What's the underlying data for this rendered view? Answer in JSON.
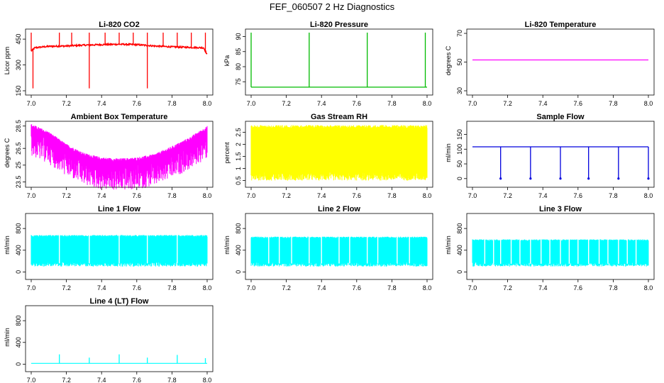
{
  "page": {
    "title": "FEF_060507  2 Hz Diagnostics"
  },
  "chart_data": [
    {
      "type": "line",
      "title": "Li-820 CO2",
      "ylabel": "Licor ppm",
      "xlim": [
        7.0,
        8.0
      ],
      "ylim": [
        150,
        500
      ],
      "xticks": [
        7.0,
        7.2,
        7.4,
        7.6,
        7.8,
        8.0
      ],
      "xtick_labels": [
        "7.0",
        "7.2",
        "7.4",
        "7.6",
        "7.8",
        "8.0"
      ],
      "yticks": [
        150,
        300,
        450
      ],
      "ytick_labels": [
        "150",
        "300",
        "450"
      ],
      "color": "#ff0000",
      "series": [
        {
          "x": [
            7.0,
            7.02,
            7.1,
            7.2,
            7.3,
            7.4,
            7.5,
            7.6,
            7.7,
            7.8,
            7.9,
            7.98,
            8.0
          ],
          "y": [
            380,
            400,
            408,
            410,
            415,
            418,
            420,
            418,
            410,
            405,
            402,
            400,
            360
          ]
        }
      ],
      "spikes_up": [
        7.0,
        7.16,
        7.23,
        7.33,
        7.42,
        7.5,
        7.58,
        7.66,
        7.75,
        7.83,
        7.91,
        7.99
      ],
      "spikes_down": [
        7.01,
        7.33,
        7.66
      ]
    },
    {
      "type": "line",
      "title": "Li-820 Pressure",
      "ylabel": "kPa",
      "xlim": [
        7.0,
        8.0
      ],
      "ylim": [
        72,
        92
      ],
      "xticks": [
        7.0,
        7.2,
        7.4,
        7.6,
        7.8,
        8.0
      ],
      "xtick_labels": [
        "7.0",
        "7.2",
        "7.4",
        "7.6",
        "7.8",
        "8.0"
      ],
      "yticks": [
        75,
        80,
        85,
        90
      ],
      "ytick_labels": [
        "75",
        "80",
        "85",
        "90"
      ],
      "color": "#00bb00",
      "series": [
        {
          "x": [
            7.0,
            7.5,
            8.0
          ],
          "y": [
            73.2,
            73.2,
            73.2
          ]
        }
      ],
      "spikes_up": [
        7.0,
        7.33,
        7.66,
        7.99
      ]
    },
    {
      "type": "line",
      "title": "Li-820 Temperature",
      "ylabel": "degrees C",
      "xlim": [
        7.0,
        8.0
      ],
      "ylim": [
        30,
        72
      ],
      "xticks": [
        7.0,
        7.2,
        7.4,
        7.6,
        7.8,
        8.0
      ],
      "xtick_labels": [
        "7.0",
        "7.2",
        "7.4",
        "7.6",
        "7.8",
        "8.0"
      ],
      "yticks": [
        30,
        50,
        70
      ],
      "ytick_labels": [
        "30",
        "50",
        "70"
      ],
      "color": "#ff00ff",
      "series": [
        {
          "x": [
            7.0,
            8.0
          ],
          "y": [
            51.5,
            51.5
          ]
        }
      ]
    },
    {
      "type": "line",
      "title": "Ambient Box Temperature",
      "ylabel": "degrees C",
      "xlim": [
        7.0,
        8.0
      ],
      "ylim": [
        23.4,
        28.8
      ],
      "xticks": [
        7.0,
        7.2,
        7.4,
        7.6,
        7.8,
        8.0
      ],
      "xtick_labels": [
        "7.0",
        "7.2",
        "7.4",
        "7.6",
        "7.8",
        "8.0"
      ],
      "yticks": [
        23.5,
        25.0,
        26.5,
        28.5
      ],
      "ytick_labels": [
        "23.5",
        "25",
        "26.5",
        "28.5"
      ],
      "color": "#ff00ff",
      "series": [
        {
          "x": [
            7.0,
            7.1,
            7.2,
            7.3,
            7.4,
            7.5,
            7.6,
            7.7,
            7.8,
            7.9,
            8.0
          ],
          "y": [
            28.0,
            27.3,
            26.2,
            25.4,
            25.0,
            24.9,
            25.0,
            25.3,
            26.0,
            26.8,
            27.8
          ]
        }
      ],
      "band_low_offset": 2.2
    },
    {
      "type": "line",
      "title": "Gas Stream RH",
      "ylabel": "percent",
      "xlim": [
        7.0,
        8.0
      ],
      "ylim": [
        0.4,
        2.9
      ],
      "xticks": [
        7.0,
        7.2,
        7.4,
        7.6,
        7.8,
        8.0
      ],
      "xtick_labels": [
        "7.0",
        "7.2",
        "7.4",
        "7.6",
        "7.8",
        "8.0"
      ],
      "yticks": [
        0.5,
        1.0,
        1.5,
        2.0,
        2.5
      ],
      "ytick_labels": [
        "0.5",
        "1",
        "1.5",
        "2",
        "2.5"
      ],
      "color": "#ffff00",
      "band": [
        0.5,
        2.8
      ]
    },
    {
      "type": "line",
      "title": "Sample Flow",
      "ylabel": "ml/min",
      "xlim": [
        7.0,
        8.0
      ],
      "ylim": [
        -15,
        190
      ],
      "xticks": [
        7.0,
        7.2,
        7.4,
        7.6,
        7.8,
        8.0
      ],
      "xtick_labels": [
        "7.0",
        "7.2",
        "7.4",
        "7.6",
        "7.8",
        "8.0"
      ],
      "yticks": [
        0,
        50,
        100,
        150
      ],
      "ytick_labels": [
        "0",
        "50",
        "100",
        "150"
      ],
      "color": "#0000dd",
      "series": [
        {
          "x": [
            7.0,
            8.0
          ],
          "y": [
            108,
            108
          ]
        }
      ],
      "spikes_down": [
        7.16,
        7.33,
        7.5,
        7.66,
        7.83,
        8.0
      ]
    },
    {
      "type": "line",
      "title": "Line 1 Flow",
      "ylabel": "ml/min",
      "xlim": [
        7.0,
        8.0
      ],
      "ylim": [
        -60,
        1050
      ],
      "xticks": [
        7.0,
        7.2,
        7.4,
        7.6,
        7.8,
        8.0
      ],
      "xtick_labels": [
        "7.0",
        "7.2",
        "7.4",
        "7.6",
        "7.8",
        "8.0"
      ],
      "yticks": [
        0,
        400,
        800
      ],
      "ytick_labels": [
        "0",
        "400",
        "800"
      ],
      "color": "#00ffff",
      "band": [
        100,
        680
      ],
      "gaps": [
        7.16,
        7.33,
        7.5,
        7.66,
        7.83
      ]
    },
    {
      "type": "line",
      "title": "Line 2 Flow",
      "ylabel": "ml/min",
      "xlim": [
        7.0,
        8.0
      ],
      "ylim": [
        -60,
        1050
      ],
      "xticks": [
        7.0,
        7.2,
        7.4,
        7.6,
        7.8,
        8.0
      ],
      "xtick_labels": [
        "7.0",
        "7.2",
        "7.4",
        "7.6",
        "7.8",
        "8.0"
      ],
      "yticks": [
        0,
        400,
        800
      ],
      "ytick_labels": [
        "0",
        "400",
        "800"
      ],
      "color": "#00ffff",
      "band": [
        100,
        650
      ],
      "gaps": [
        7.16,
        7.33,
        7.5,
        7.66,
        7.83,
        7.1,
        7.23,
        7.4,
        7.56,
        7.72,
        7.9
      ]
    },
    {
      "type": "line",
      "title": "Line 3 Flow",
      "ylabel": "ml/min",
      "xlim": [
        7.0,
        8.0
      ],
      "ylim": [
        -60,
        1050
      ],
      "xticks": [
        7.0,
        7.2,
        7.4,
        7.6,
        7.8,
        8.0
      ],
      "xtick_labels": [
        "7.0",
        "7.2",
        "7.4",
        "7.6",
        "7.8",
        "8.0"
      ],
      "yticks": [
        0,
        400,
        800
      ],
      "ytick_labels": [
        "0",
        "400",
        "800"
      ],
      "color": "#00ffff",
      "band": [
        100,
        600
      ],
      "gaps": [
        7.16,
        7.33,
        7.5,
        7.66,
        7.83,
        7.07,
        7.12,
        7.22,
        7.27,
        7.39,
        7.44,
        7.55,
        7.6,
        7.72,
        7.77,
        7.88,
        7.93
      ]
    },
    {
      "type": "line",
      "title": "Line 4 (LT) Flow",
      "ylabel": "ml/min",
      "xlim": [
        7.0,
        8.0
      ],
      "ylim": [
        -60,
        1050
      ],
      "xticks": [
        7.0,
        7.2,
        7.4,
        7.6,
        7.8,
        8.0
      ],
      "xtick_labels": [
        "7.0",
        "7.2",
        "7.4",
        "7.6",
        "7.8",
        "8.0"
      ],
      "yticks": [
        0,
        400,
        800
      ],
      "ytick_labels": [
        "0",
        "400",
        "800"
      ],
      "color": "#00ffff",
      "series": [
        {
          "x": [
            7.0,
            8.0
          ],
          "y": [
            15,
            15
          ]
        }
      ],
      "spikes_up_values": [
        [
          7.16,
          180
        ],
        [
          7.33,
          120
        ],
        [
          7.5,
          180
        ],
        [
          7.66,
          120
        ],
        [
          7.83,
          170
        ],
        [
          7.99,
          110
        ]
      ]
    }
  ]
}
